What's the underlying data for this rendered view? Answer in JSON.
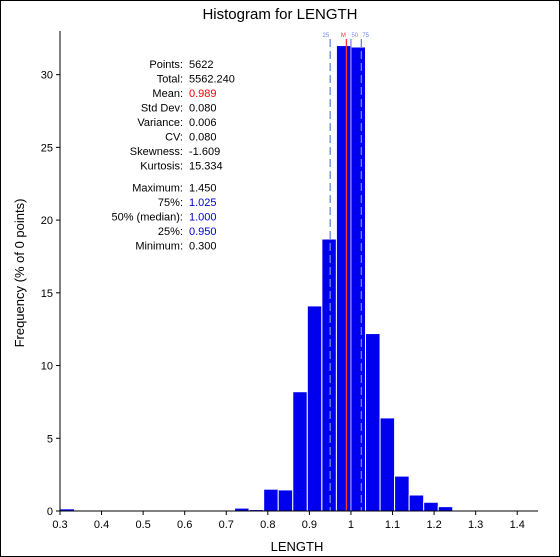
{
  "chart_data": {
    "type": "histogram",
    "title": "Histogram for LENGTH",
    "xlabel": "LENGTH",
    "ylabel": "Frequency (% of 0 points)",
    "xlim": [
      0.3,
      1.45
    ],
    "ylim": [
      0,
      33
    ],
    "x_ticks": [
      0.3,
      0.4,
      0.5,
      0.6,
      0.7,
      0.8,
      0.9,
      1.0,
      1.1,
      1.2,
      1.3,
      1.4
    ],
    "x_tick_labels": [
      "0.3",
      "0.4",
      "0.5",
      "0.6",
      "0.7",
      "0.8",
      "0.9",
      "1",
      "1.1",
      "1.2",
      "1.3",
      "1.4"
    ],
    "y_ticks": [
      0,
      5,
      10,
      15,
      20,
      25,
      30
    ],
    "y_tick_labels": [
      "0",
      "5",
      "10",
      "15",
      "20",
      "25",
      "30"
    ],
    "bin_width": 0.035,
    "bins": [
      {
        "start": 0.3,
        "value": 0.15
      },
      {
        "start": 0.335,
        "value": 0.05
      },
      {
        "start": 0.37,
        "value": 0.05
      },
      {
        "start": 0.405,
        "value": 0.05
      },
      {
        "start": 0.44,
        "value": 0.05
      },
      {
        "start": 0.475,
        "value": 0.03
      },
      {
        "start": 0.51,
        "value": 0.05
      },
      {
        "start": 0.545,
        "value": 0.05
      },
      {
        "start": 0.58,
        "value": 0.05
      },
      {
        "start": 0.615,
        "value": 0.03
      },
      {
        "start": 0.65,
        "value": 0.03
      },
      {
        "start": 0.685,
        "value": 0.05
      },
      {
        "start": 0.72,
        "value": 0.2
      },
      {
        "start": 0.755,
        "value": 0.1
      },
      {
        "start": 0.79,
        "value": 1.5
      },
      {
        "start": 0.825,
        "value": 1.45
      },
      {
        "start": 0.86,
        "value": 8.2
      },
      {
        "start": 0.895,
        "value": 14.1
      },
      {
        "start": 0.93,
        "value": 18.7
      },
      {
        "start": 0.965,
        "value": 32.0
      },
      {
        "start": 1.0,
        "value": 31.9
      },
      {
        "start": 1.035,
        "value": 12.2
      },
      {
        "start": 1.07,
        "value": 6.4
      },
      {
        "start": 1.105,
        "value": 2.4
      },
      {
        "start": 1.14,
        "value": 1.1
      },
      {
        "start": 1.175,
        "value": 0.6
      },
      {
        "start": 1.21,
        "value": 0.3
      },
      {
        "start": 1.245,
        "value": 0.05
      },
      {
        "start": 1.28,
        "value": 0.05
      },
      {
        "start": 1.315,
        "value": 0.05
      },
      {
        "start": 1.35,
        "value": 0.05
      },
      {
        "start": 1.385,
        "value": 0.05
      },
      {
        "start": 1.42,
        "value": 0.03
      }
    ],
    "reference_lines": [
      {
        "label": "25",
        "x": 0.95,
        "style": "dashed",
        "color": "#6688dd"
      },
      {
        "label": "M",
        "x": 0.989,
        "style": "solid",
        "color": "#ff3333"
      },
      {
        "label": "50",
        "x": 1.0,
        "style": "solid",
        "color": "#8888ff"
      },
      {
        "label": "75",
        "x": 1.025,
        "style": "dashed",
        "color": "#6688dd"
      }
    ],
    "statistics": [
      {
        "label": "Points:",
        "value": "5622",
        "color": "#000000"
      },
      {
        "label": "Total:",
        "value": "5562.240",
        "color": "#000000"
      },
      {
        "label": "Mean:",
        "value": "0.989",
        "color": "#ff0000"
      },
      {
        "label": "Std Dev:",
        "value": "0.080",
        "color": "#000000"
      },
      {
        "label": "Variance:",
        "value": "0.006",
        "color": "#000000"
      },
      {
        "label": "CV:",
        "value": "0.080",
        "color": "#000000"
      },
      {
        "label": "Skewness:",
        "value": "-1.609",
        "color": "#000000"
      },
      {
        "label": "Kurtosis:",
        "value": "15.334",
        "color": "#000000"
      },
      {
        "label": "Maximum:",
        "value": "1.450",
        "color": "#000000"
      },
      {
        "label": "75%:",
        "value": "1.025",
        "color": "#0000cc"
      },
      {
        "label": "50% (median):",
        "value": "1.000",
        "color": "#0000cc"
      },
      {
        "label": "25%:",
        "value": "0.950",
        "color": "#0000cc"
      },
      {
        "label": "Minimum:",
        "value": "0.300",
        "color": "#000000"
      }
    ],
    "bar_color": "#0000ee",
    "bar_edge_color": "#ffffff",
    "grid": false,
    "legend": "none"
  }
}
